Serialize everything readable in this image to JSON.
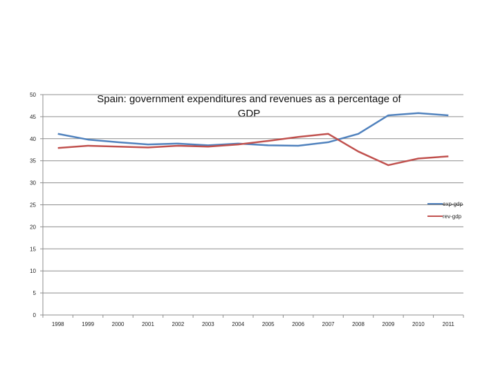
{
  "chart_data": {
    "type": "line",
    "title_lines": [
      "Spain: government expenditures and revenues as a percentage of",
      "GDP"
    ],
    "xlabel": "",
    "ylabel": "",
    "categories": [
      "1998",
      "1999",
      "2000",
      "2001",
      "2002",
      "2003",
      "2004",
      "2005",
      "2006",
      "2007",
      "2008",
      "2009",
      "2010",
      "2011"
    ],
    "ylim": [
      0,
      50
    ],
    "yticks": [
      "0",
      "5",
      "10",
      "15",
      "20",
      "25",
      "30",
      "35",
      "40",
      "45",
      "50"
    ],
    "grid": true,
    "legend_position": "right",
    "series": [
      {
        "name": "exp-gdp",
        "color": "#4f81bd",
        "values": [
          41.1,
          39.8,
          39.2,
          38.7,
          38.9,
          38.5,
          38.9,
          38.5,
          38.4,
          39.2,
          41.1,
          45.3,
          45.8,
          45.3
        ]
      },
      {
        "name": "rev-gdp",
        "color": "#c0504d",
        "values": [
          37.9,
          38.4,
          38.2,
          38.0,
          38.4,
          38.2,
          38.7,
          39.5,
          40.4,
          41.1,
          37.1,
          34.0,
          35.5,
          36.0
        ]
      }
    ]
  }
}
